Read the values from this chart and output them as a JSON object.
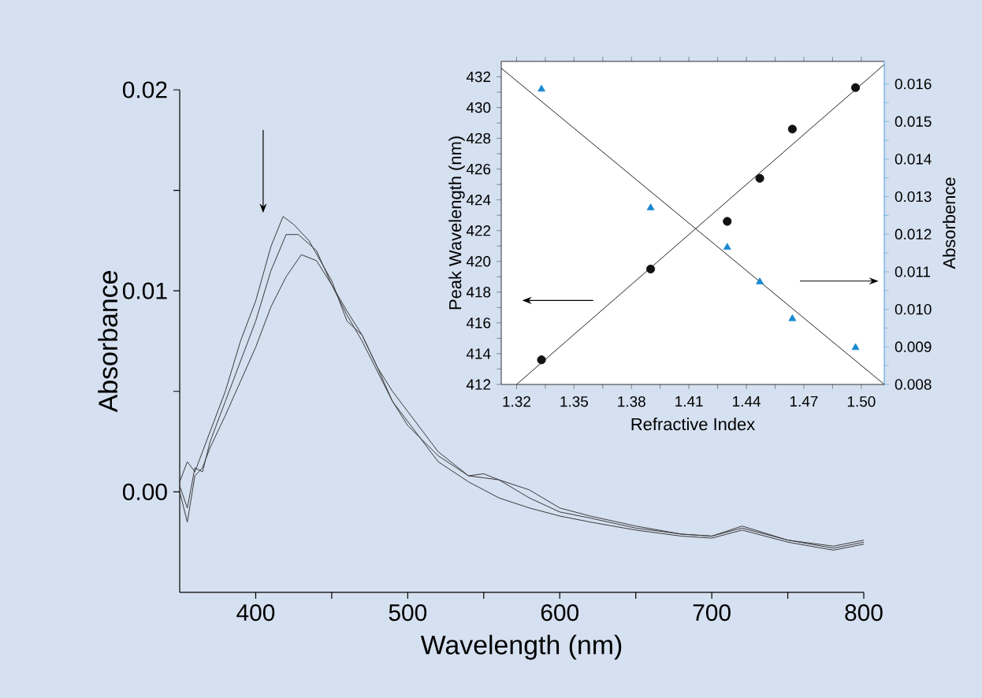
{
  "chart_data": [
    {
      "type": "line",
      "xlabel": "Wavelength (nm)",
      "ylabel": "Absorbance",
      "xlim": [
        350,
        800
      ],
      "ylim": [
        -0.005,
        0.02
      ],
      "xticks": [
        400,
        {
          "value": 450,
          "label": null
        },
        500,
        {
          "value": 550,
          "label": null
        },
        600,
        {
          "value": 650,
          "label": null
        },
        700,
        {
          "value": 750,
          "label": null
        },
        800
      ],
      "yticks": [
        {
          "value": 0,
          "label": "0.00"
        },
        {
          "value": 0.005,
          "label": null
        },
        {
          "value": 0.01,
          "label": "0.01"
        },
        {
          "value": 0.015,
          "label": null
        },
        {
          "value": 0.02,
          "label": "0.02"
        }
      ],
      "series": [
        {
          "color": "#3a3a3a",
          "x": [
            350,
            355,
            360,
            365,
            370,
            380,
            390,
            400,
            410,
            418,
            425,
            435,
            450,
            460,
            470,
            480,
            490,
            500,
            520,
            540,
            550,
            560,
            580,
            600,
            620,
            650,
            680,
            700,
            720,
            750,
            780,
            800
          ],
          "values": [
            0.0005,
            0.0015,
            0.001,
            0.002,
            0.003,
            0.005,
            0.0075,
            0.0095,
            0.0122,
            0.0137,
            0.0133,
            0.0125,
            0.0105,
            0.0085,
            0.0078,
            0.0062,
            0.0045,
            0.0033,
            0.0018,
            0.0008,
            0.0007,
            0.0006,
            0.0001,
            -0.0008,
            -0.0012,
            -0.0017,
            -0.0021,
            -0.0022,
            -0.0018,
            -0.0024,
            -0.0028,
            -0.0025
          ]
        },
        {
          "color": "#3a3a3a",
          "x": [
            350,
            355,
            360,
            365,
            370,
            380,
            390,
            400,
            410,
            420,
            428,
            440,
            450,
            460,
            470,
            480,
            490,
            500,
            520,
            540,
            560,
            580,
            600,
            620,
            650,
            680,
            700,
            720,
            750,
            780,
            800
          ],
          "values": [
            0.0003,
            -0.0008,
            0.0012,
            0.001,
            0.0025,
            0.0045,
            0.0065,
            0.0085,
            0.011,
            0.0128,
            0.0128,
            0.012,
            0.0103,
            0.0088,
            0.0075,
            0.006,
            0.0045,
            0.0035,
            0.0015,
            0.0005,
            -0.0003,
            -0.0008,
            -0.0012,
            -0.0015,
            -0.0019,
            -0.0022,
            -0.0023,
            -0.0019,
            -0.0025,
            -0.0029,
            -0.0026
          ]
        },
        {
          "color": "#3a3a3a",
          "x": [
            350,
            355,
            360,
            365,
            370,
            380,
            390,
            400,
            410,
            420,
            430,
            440,
            450,
            460,
            470,
            480,
            490,
            500,
            520,
            540,
            550,
            560,
            580,
            600,
            620,
            650,
            680,
            700,
            720,
            750,
            780,
            800
          ],
          "values": [
            0.0,
            -0.0015,
            0.0008,
            0.0012,
            0.0022,
            0.0038,
            0.0055,
            0.0072,
            0.0092,
            0.0107,
            0.0118,
            0.0115,
            0.0103,
            0.009,
            0.0078,
            0.0062,
            0.005,
            0.004,
            0.002,
            0.0008,
            0.0009,
            0.0006,
            -0.0003,
            -0.001,
            -0.0013,
            -0.0018,
            -0.0021,
            -0.0022,
            -0.0017,
            -0.0024,
            -0.0027,
            -0.0024
          ]
        }
      ]
    },
    {
      "type": "scatter",
      "xlabel": "Refractive Index",
      "ylabel": "Peak Wavelength (nm)",
      "y2label": "Absorbence",
      "xlim": [
        1.312,
        1.512
      ],
      "ylim": [
        412,
        433
      ],
      "y2lim": [
        0.008,
        0.0166
      ],
      "xticks": [
        {
          "value": 1.32,
          "label": "1.32"
        },
        {
          "value": 1.35,
          "label": "1.35"
        },
        {
          "value": 1.38,
          "label": "1.38"
        },
        {
          "value": 1.41,
          "label": "1.41"
        },
        {
          "value": 1.44,
          "label": "1.44"
        },
        {
          "value": 1.47,
          "label": "1.47"
        },
        {
          "value": 1.5,
          "label": "1.50"
        }
      ],
      "yticks": [
        412,
        414,
        416,
        418,
        420,
        422,
        424,
        426,
        428,
        430,
        432
      ],
      "y2ticks": [
        {
          "value": 0.008,
          "label": "0.008"
        },
        {
          "value": 0.009,
          "label": "0.009"
        },
        {
          "value": 0.01,
          "label": "0.010"
        },
        {
          "value": 0.011,
          "label": "0.011"
        },
        {
          "value": 0.012,
          "label": "0.012"
        },
        {
          "value": 0.013,
          "label": "0.013"
        },
        {
          "value": 0.014,
          "label": "0.014"
        },
        {
          "value": 0.015,
          "label": "0.015"
        },
        {
          "value": 0.016,
          "label": "0.016"
        }
      ],
      "series": [
        {
          "type": "scatter",
          "marker": "circle",
          "color": "#111111",
          "x": [
            1.333,
            1.39,
            1.43,
            1.447,
            1.464,
            1.497
          ],
          "values": [
            413.6,
            419.5,
            422.6,
            425.4,
            428.6,
            431.3
          ]
        },
        {
          "type": "line",
          "color": "#222222",
          "x": [
            1.32,
            1.512
          ],
          "values": [
            412,
            432.8
          ]
        },
        {
          "type": "scatter",
          "marker": "triangle",
          "axis": "y2",
          "color": "#1a8ad0",
          "x": [
            1.333,
            1.39,
            1.43,
            1.447,
            1.464,
            1.497
          ],
          "values": [
            0.01586,
            0.0127,
            0.01165,
            0.01073,
            0.00975,
            0.00898
          ]
        },
        {
          "type": "line",
          "axis": "y2",
          "color": "#222222",
          "x": [
            1.312,
            1.512
          ],
          "values": [
            0.01642,
            0.008
          ]
        }
      ]
    }
  ]
}
